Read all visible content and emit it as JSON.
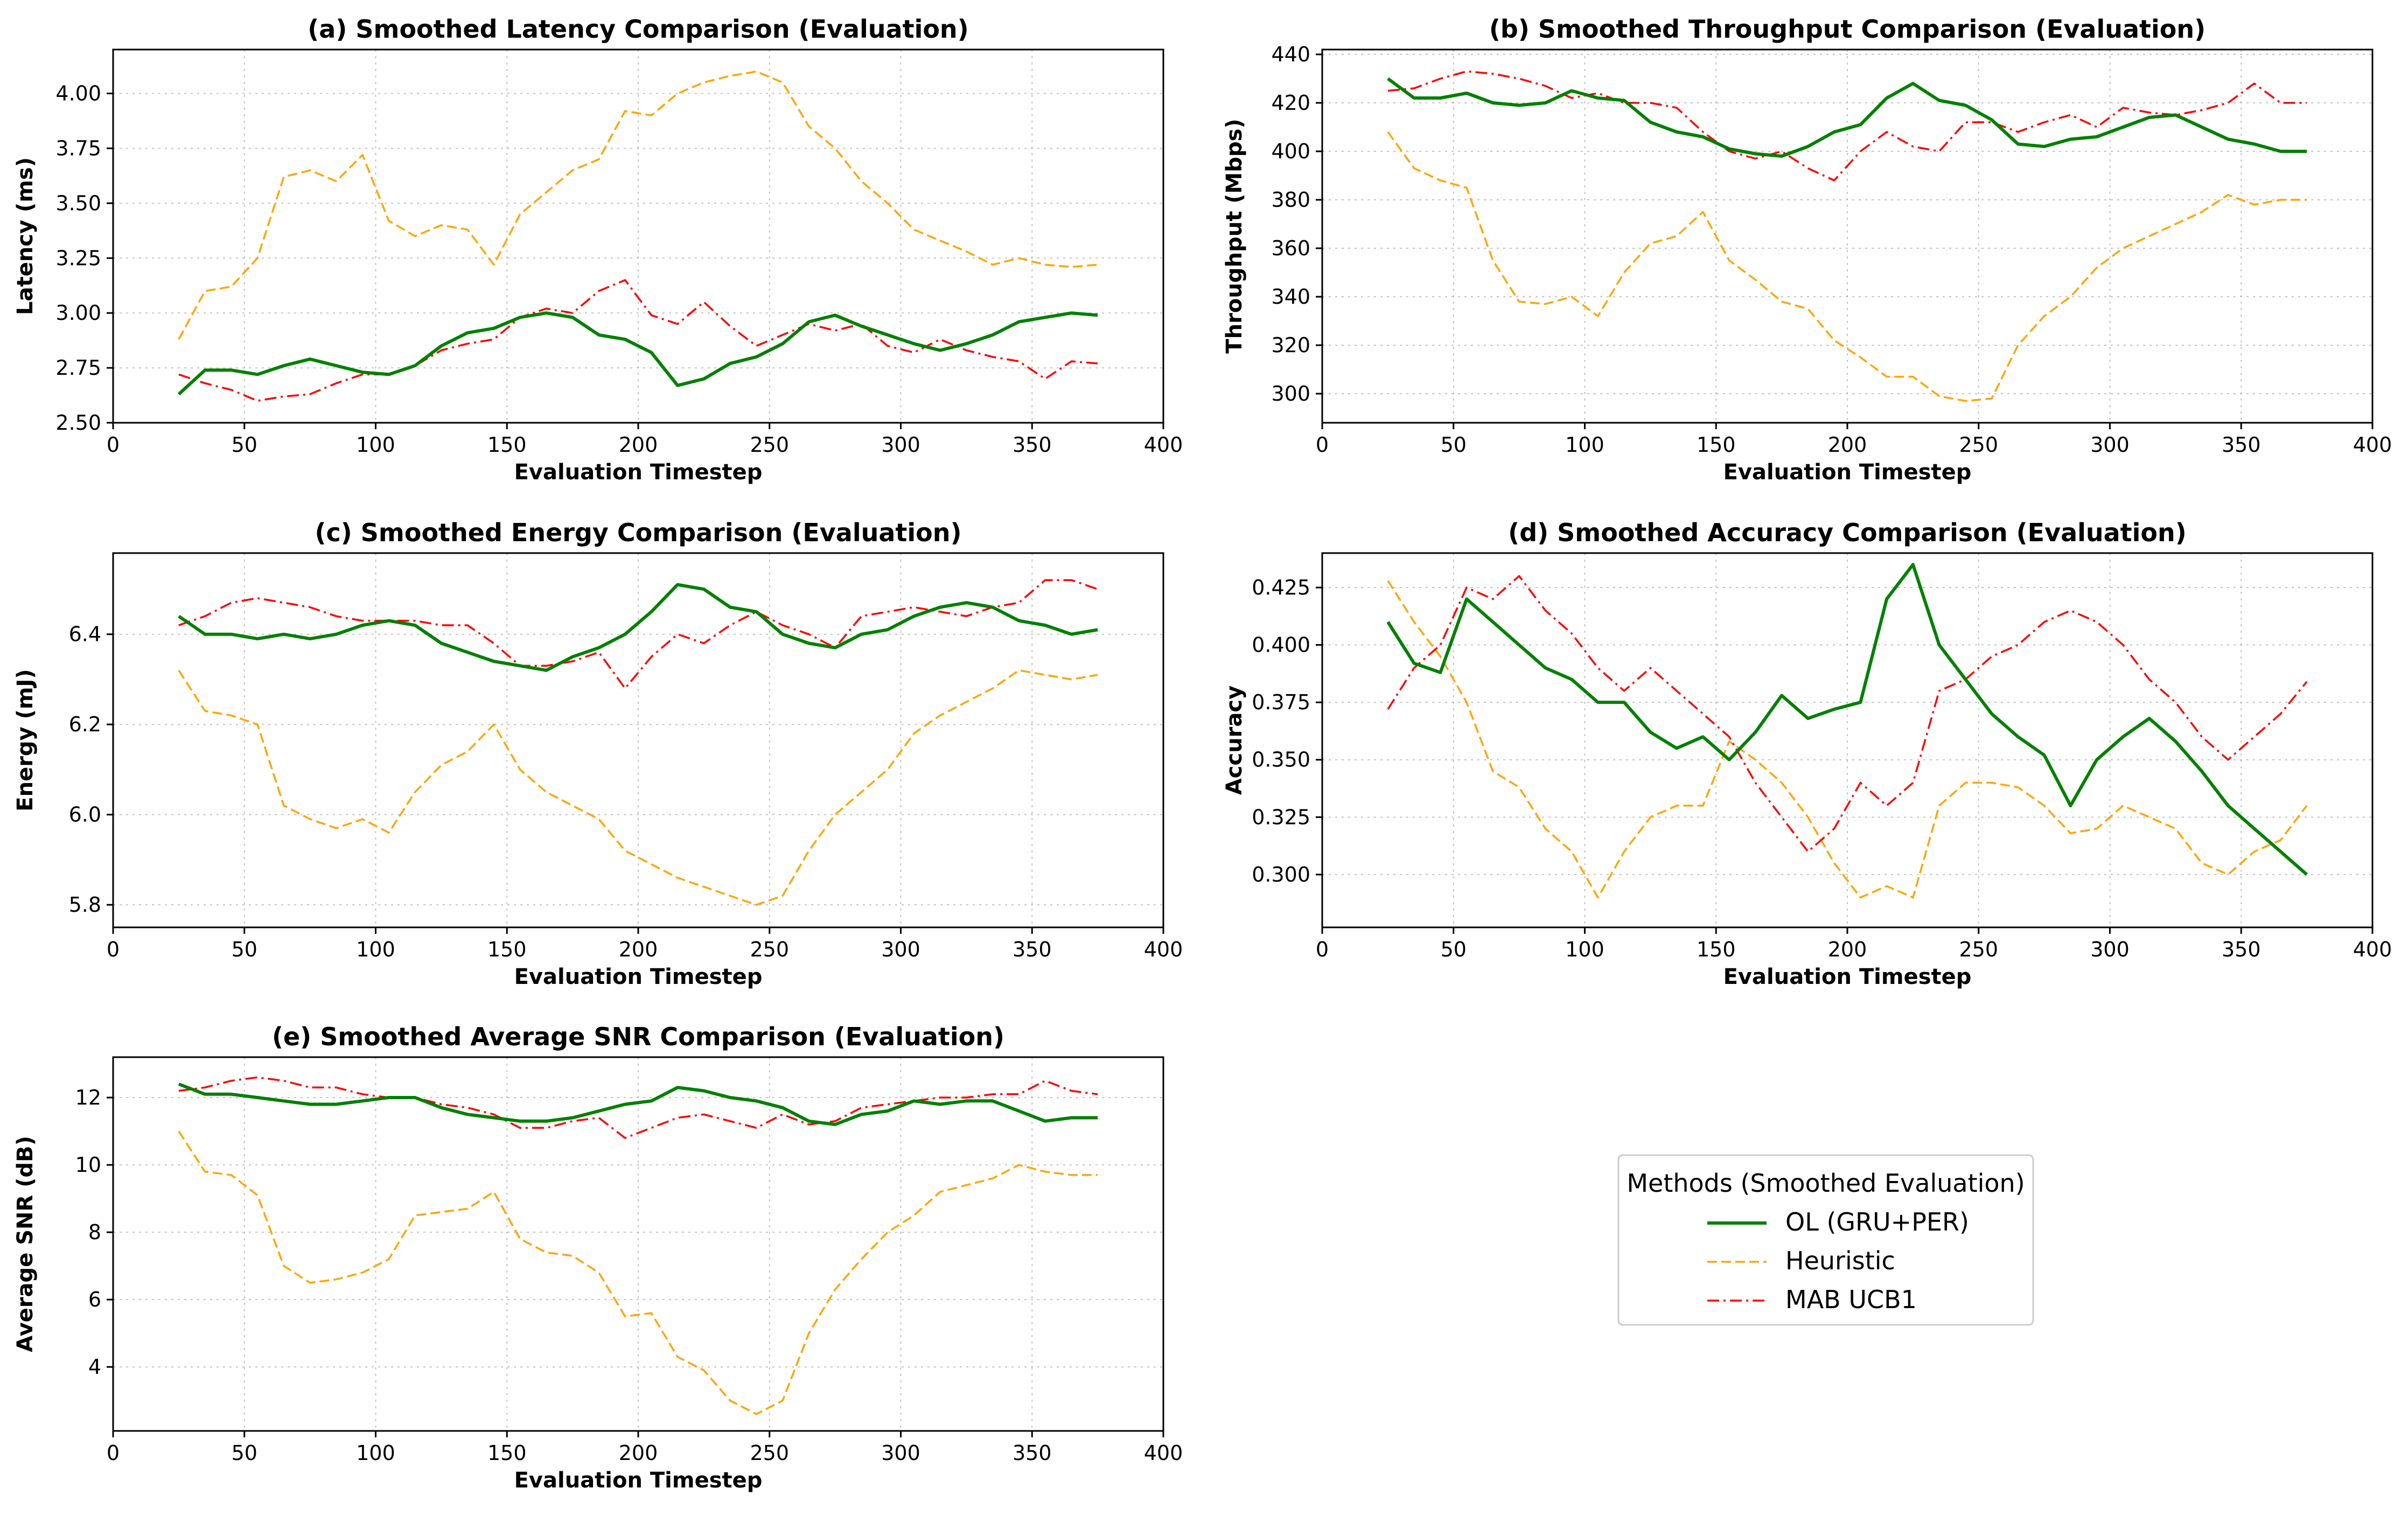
{
  "legend": {
    "title": "Methods (Smoothed Evaluation)",
    "placement": "center of empty bottom-right cell",
    "entries": [
      "OL (GRU+PER)",
      "Heuristic",
      "MAB UCB1"
    ]
  },
  "series_style": {
    "OL (GRU+PER)": {
      "color": "#008000",
      "dash": "solid"
    },
    "Heuristic": {
      "color": "#FFA500",
      "dash": "dashed"
    },
    "MAB UCB1": {
      "color": "#FF0000",
      "dash": "dashdot"
    }
  },
  "chart_data": [
    {
      "type": "line",
      "title": "(a) Smoothed Latency Comparison (Evaluation)",
      "xlabel": "Evaluation Timestep",
      "ylabel": "Latency (ms)",
      "xlim": [
        0,
        400
      ],
      "ylim": [
        2.5,
        4.2
      ],
      "xticks": [
        0,
        50,
        100,
        150,
        200,
        250,
        300,
        350,
        400
      ],
      "yticks": [
        2.5,
        2.75,
        3.0,
        3.25,
        3.5,
        3.75,
        4.0
      ],
      "ytick_labels": [
        "2.50",
        "2.75",
        "3.00",
        "3.25",
        "3.50",
        "3.75",
        "4.00"
      ],
      "grid": true,
      "x": [
        25,
        35,
        45,
        55,
        65,
        75,
        85,
        95,
        105,
        115,
        125,
        135,
        145,
        155,
        165,
        175,
        185,
        195,
        205,
        215,
        225,
        235,
        245,
        255,
        265,
        275,
        285,
        295,
        305,
        315,
        325,
        335,
        345,
        355,
        365,
        375
      ],
      "series": [
        {
          "name": "OL (GRU+PER)",
          "values": [
            2.63,
            2.74,
            2.74,
            2.72,
            2.76,
            2.79,
            2.76,
            2.73,
            2.72,
            2.76,
            2.85,
            2.91,
            2.93,
            2.98,
            3.0,
            2.98,
            2.9,
            2.88,
            2.82,
            2.67,
            2.7,
            2.77,
            2.8,
            2.86,
            2.96,
            2.99,
            2.94,
            2.9,
            2.86,
            2.83,
            2.86,
            2.9,
            2.96,
            2.98,
            3.0,
            2.99
          ]
        },
        {
          "name": "Heuristic",
          "values": [
            2.88,
            3.1,
            3.12,
            3.25,
            3.62,
            3.65,
            3.6,
            3.72,
            3.42,
            3.35,
            3.4,
            3.38,
            3.22,
            3.45,
            3.55,
            3.65,
            3.7,
            3.92,
            3.9,
            4.0,
            4.05,
            4.08,
            4.1,
            4.05,
            3.85,
            3.75,
            3.6,
            3.5,
            3.38,
            3.33,
            3.28,
            3.22,
            3.25,
            3.22,
            3.21,
            3.22
          ]
        },
        {
          "name": "MAB UCB1",
          "values": [
            2.72,
            2.68,
            2.65,
            2.6,
            2.62,
            2.63,
            2.68,
            2.72,
            2.72,
            2.76,
            2.83,
            2.86,
            2.88,
            2.98,
            3.02,
            3.0,
            3.1,
            3.15,
            2.99,
            2.95,
            3.05,
            2.94,
            2.85,
            2.9,
            2.95,
            2.92,
            2.95,
            2.85,
            2.82,
            2.88,
            2.83,
            2.8,
            2.78,
            2.7,
            2.78,
            2.77
          ]
        }
      ]
    },
    {
      "type": "line",
      "title": "(b) Smoothed Throughput Comparison (Evaluation)",
      "xlabel": "Evaluation Timestep",
      "ylabel": "Throughput (Mbps)",
      "xlim": [
        0,
        400
      ],
      "ylim": [
        288,
        442
      ],
      "xticks": [
        0,
        50,
        100,
        150,
        200,
        250,
        300,
        350,
        400
      ],
      "yticks": [
        300,
        320,
        340,
        360,
        380,
        400,
        420,
        440
      ],
      "ytick_labels": [
        "300",
        "320",
        "340",
        "360",
        "380",
        "400",
        "420",
        "440"
      ],
      "grid": true,
      "x": [
        25,
        35,
        45,
        55,
        65,
        75,
        85,
        95,
        105,
        115,
        125,
        135,
        145,
        155,
        165,
        175,
        185,
        195,
        205,
        215,
        225,
        235,
        245,
        255,
        265,
        275,
        285,
        295,
        305,
        315,
        325,
        335,
        345,
        355,
        365,
        375
      ],
      "series": [
        {
          "name": "OL (GRU+PER)",
          "values": [
            430,
            422,
            422,
            424,
            420,
            419,
            420,
            425,
            422,
            421,
            412,
            408,
            406,
            401,
            399,
            398,
            402,
            408,
            411,
            422,
            428,
            421,
            419,
            413,
            403,
            402,
            405,
            406,
            410,
            414,
            415,
            410,
            405,
            403,
            400,
            400
          ]
        },
        {
          "name": "Heuristic",
          "values": [
            408,
            393,
            388,
            385,
            355,
            338,
            337,
            340,
            332,
            350,
            362,
            365,
            375,
            355,
            347,
            338,
            335,
            322,
            315,
            307,
            307,
            299,
            297,
            298,
            320,
            332,
            340,
            352,
            360,
            365,
            370,
            375,
            382,
            378,
            380,
            380
          ]
        },
        {
          "name": "MAB UCB1",
          "values": [
            425,
            426,
            430,
            433,
            432,
            430,
            427,
            422,
            424,
            420,
            420,
            418,
            408,
            400,
            397,
            400,
            393,
            388,
            400,
            408,
            402,
            400,
            412,
            412,
            408,
            412,
            415,
            410,
            418,
            416,
            415,
            417,
            420,
            428,
            420,
            420
          ]
        }
      ]
    },
    {
      "type": "line",
      "title": "(c) Smoothed Energy Comparison (Evaluation)",
      "xlabel": "Evaluation Timestep",
      "ylabel": "Energy (mJ)",
      "xlim": [
        0,
        400
      ],
      "ylim": [
        5.75,
        6.58
      ],
      "xticks": [
        0,
        50,
        100,
        150,
        200,
        250,
        300,
        350,
        400
      ],
      "yticks": [
        5.8,
        6.0,
        6.2,
        6.4
      ],
      "ytick_labels": [
        "5.8",
        "6.0",
        "6.2",
        "6.4"
      ],
      "grid": true,
      "x": [
        25,
        35,
        45,
        55,
        65,
        75,
        85,
        95,
        105,
        115,
        125,
        135,
        145,
        155,
        165,
        175,
        185,
        195,
        205,
        215,
        225,
        235,
        245,
        255,
        265,
        275,
        285,
        295,
        305,
        315,
        325,
        335,
        345,
        355,
        365,
        375
      ],
      "series": [
        {
          "name": "OL (GRU+PER)",
          "values": [
            6.44,
            6.4,
            6.4,
            6.39,
            6.4,
            6.39,
            6.4,
            6.42,
            6.43,
            6.42,
            6.38,
            6.36,
            6.34,
            6.33,
            6.32,
            6.35,
            6.37,
            6.4,
            6.45,
            6.51,
            6.5,
            6.46,
            6.45,
            6.4,
            6.38,
            6.37,
            6.4,
            6.41,
            6.44,
            6.46,
            6.47,
            6.46,
            6.43,
            6.42,
            6.4,
            6.41
          ]
        },
        {
          "name": "Heuristic",
          "values": [
            6.32,
            6.23,
            6.22,
            6.2,
            6.02,
            5.99,
            5.97,
            5.99,
            5.96,
            6.05,
            6.11,
            6.14,
            6.2,
            6.1,
            6.05,
            6.02,
            5.99,
            5.92,
            5.89,
            5.86,
            5.84,
            5.82,
            5.8,
            5.82,
            5.92,
            6.0,
            6.05,
            6.1,
            6.18,
            6.22,
            6.25,
            6.28,
            6.32,
            6.31,
            6.3,
            6.31
          ]
        },
        {
          "name": "MAB UCB1",
          "values": [
            6.42,
            6.44,
            6.47,
            6.48,
            6.47,
            6.46,
            6.44,
            6.43,
            6.43,
            6.43,
            6.42,
            6.42,
            6.38,
            6.33,
            6.33,
            6.34,
            6.36,
            6.28,
            6.35,
            6.4,
            6.38,
            6.42,
            6.45,
            6.42,
            6.4,
            6.37,
            6.44,
            6.45,
            6.46,
            6.45,
            6.44,
            6.46,
            6.47,
            6.52,
            6.52,
            6.5
          ]
        }
      ]
    },
    {
      "type": "line",
      "title": "(d) Smoothed Accuracy Comparison (Evaluation)",
      "xlabel": "Evaluation Timestep",
      "ylabel": "Accuracy",
      "xlim": [
        0,
        400
      ],
      "ylim": [
        0.277,
        0.44
      ],
      "xticks": [
        0,
        50,
        100,
        150,
        200,
        250,
        300,
        350,
        400
      ],
      "yticks": [
        0.3,
        0.325,
        0.35,
        0.375,
        0.4,
        0.425
      ],
      "ytick_labels": [
        "0.300",
        "0.325",
        "0.350",
        "0.375",
        "0.400",
        "0.425"
      ],
      "grid": true,
      "x": [
        25,
        35,
        45,
        55,
        65,
        75,
        85,
        95,
        105,
        115,
        125,
        135,
        145,
        155,
        165,
        175,
        185,
        195,
        205,
        215,
        225,
        235,
        245,
        255,
        265,
        275,
        285,
        295,
        305,
        315,
        325,
        335,
        345,
        355,
        365,
        375
      ],
      "series": [
        {
          "name": "OL (GRU+PER)",
          "values": [
            0.41,
            0.392,
            0.388,
            0.42,
            0.41,
            0.4,
            0.39,
            0.385,
            0.375,
            0.375,
            0.362,
            0.355,
            0.36,
            0.35,
            0.362,
            0.378,
            0.368,
            0.372,
            0.375,
            0.42,
            0.435,
            0.4,
            0.385,
            0.37,
            0.36,
            0.352,
            0.33,
            0.35,
            0.36,
            0.368,
            0.358,
            0.345,
            0.33,
            0.32,
            0.31,
            0.3
          ]
        },
        {
          "name": "Heuristic",
          "values": [
            0.428,
            0.41,
            0.395,
            0.375,
            0.345,
            0.338,
            0.32,
            0.31,
            0.29,
            0.31,
            0.325,
            0.33,
            0.33,
            0.358,
            0.35,
            0.34,
            0.325,
            0.305,
            0.29,
            0.295,
            0.29,
            0.33,
            0.34,
            0.34,
            0.338,
            0.33,
            0.318,
            0.32,
            0.33,
            0.325,
            0.32,
            0.305,
            0.3,
            0.31,
            0.315,
            0.33
          ]
        },
        {
          "name": "MAB UCB1",
          "values": [
            0.372,
            0.39,
            0.4,
            0.425,
            0.42,
            0.43,
            0.415,
            0.405,
            0.39,
            0.38,
            0.39,
            0.38,
            0.37,
            0.36,
            0.34,
            0.325,
            0.31,
            0.32,
            0.34,
            0.33,
            0.34,
            0.38,
            0.385,
            0.395,
            0.4,
            0.41,
            0.415,
            0.41,
            0.4,
            0.385,
            0.375,
            0.36,
            0.35,
            0.36,
            0.37,
            0.384
          ]
        }
      ]
    },
    {
      "type": "line",
      "title": "(e) Smoothed Average SNR Comparison (Evaluation)",
      "xlabel": "Evaluation Timestep",
      "ylabel": "Average SNR (dB)",
      "xlim": [
        0,
        400
      ],
      "ylim": [
        2.1,
        13.2
      ],
      "xticks": [
        0,
        50,
        100,
        150,
        200,
        250,
        300,
        350,
        400
      ],
      "yticks": [
        4,
        6,
        8,
        10,
        12
      ],
      "ytick_labels": [
        "4",
        "6",
        "8",
        "10",
        "12"
      ],
      "grid": true,
      "x": [
        25,
        35,
        45,
        55,
        65,
        75,
        85,
        95,
        105,
        115,
        125,
        135,
        145,
        155,
        165,
        175,
        185,
        195,
        205,
        215,
        225,
        235,
        245,
        255,
        265,
        275,
        285,
        295,
        305,
        315,
        325,
        335,
        345,
        355,
        365,
        375
      ],
      "series": [
        {
          "name": "OL (GRU+PER)",
          "values": [
            12.4,
            12.1,
            12.1,
            12.0,
            11.9,
            11.8,
            11.8,
            11.9,
            12.0,
            12.0,
            11.7,
            11.5,
            11.4,
            11.3,
            11.3,
            11.4,
            11.6,
            11.8,
            11.9,
            12.3,
            12.2,
            12.0,
            11.9,
            11.7,
            11.3,
            11.2,
            11.5,
            11.6,
            11.9,
            11.8,
            11.9,
            11.9,
            11.6,
            11.3,
            11.4,
            11.4
          ]
        },
        {
          "name": "Heuristic",
          "values": [
            11.0,
            9.8,
            9.7,
            9.1,
            7.0,
            6.5,
            6.6,
            6.8,
            7.2,
            8.5,
            8.6,
            8.7,
            9.2,
            7.8,
            7.4,
            7.3,
            6.8,
            5.5,
            5.6,
            4.3,
            3.9,
            3.0,
            2.6,
            3.0,
            5.0,
            6.3,
            7.2,
            8.0,
            8.5,
            9.2,
            9.4,
            9.6,
            10.0,
            9.8,
            9.7,
            9.7
          ]
        },
        {
          "name": "MAB UCB1",
          "values": [
            12.2,
            12.3,
            12.5,
            12.6,
            12.5,
            12.3,
            12.3,
            12.1,
            12.0,
            12.0,
            11.8,
            11.7,
            11.5,
            11.1,
            11.1,
            11.3,
            11.4,
            10.8,
            11.1,
            11.4,
            11.5,
            11.3,
            11.1,
            11.5,
            11.2,
            11.3,
            11.7,
            11.8,
            11.9,
            12.0,
            12.0,
            12.1,
            12.1,
            12.5,
            12.2,
            12.1
          ]
        }
      ]
    }
  ]
}
